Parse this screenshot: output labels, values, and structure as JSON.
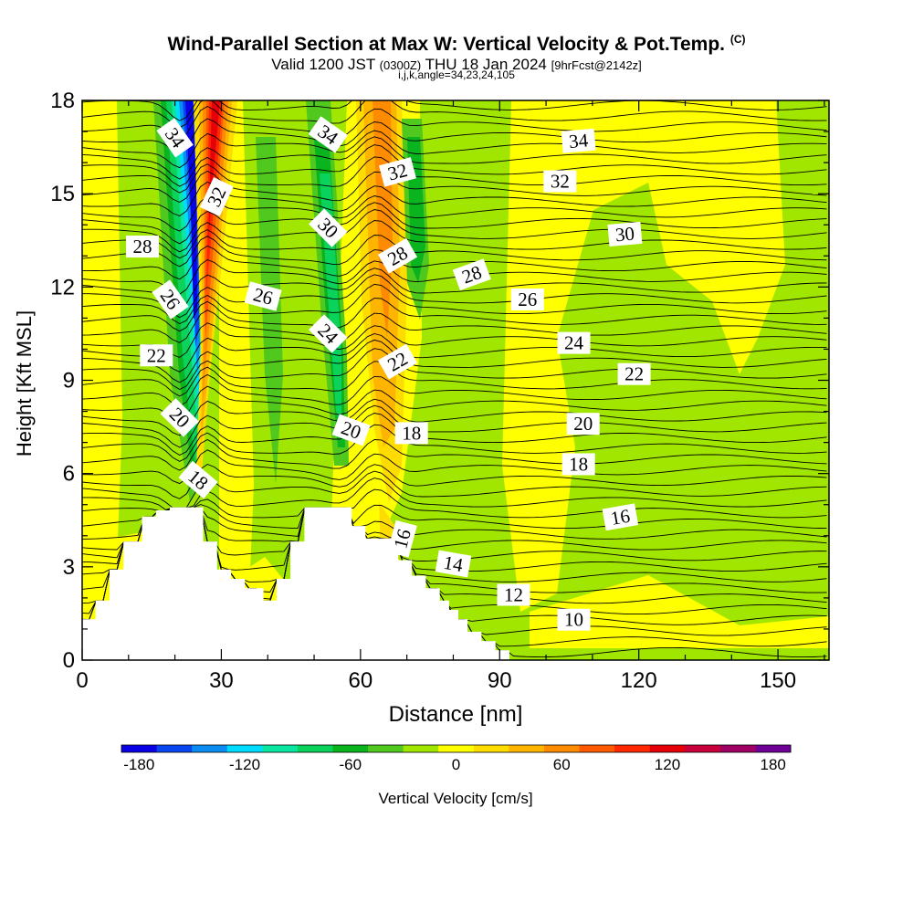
{
  "title": {
    "main": "Wind-Parallel Section at Max W: Vertical Velocity & Pot.Temp.",
    "copyright": "(C)",
    "valid_prefix": "Valid 1200 JST",
    "valid_zulu": "(0300Z)",
    "valid_date": "THU 18 Jan 2024",
    "forecast": "[9hrFcst@2142z]",
    "indices": "i,j,k,angle=34,23,24,105"
  },
  "chart_data": {
    "type": "heatmap",
    "xlabel": "Distance [nm]",
    "ylabel": "Height [Kft MSL]",
    "xlim": [
      0,
      161
    ],
    "ylim": [
      0,
      18
    ],
    "xticks": [
      0,
      30,
      60,
      90,
      120,
      150
    ],
    "yticks": [
      0,
      3,
      6,
      9,
      12,
      15,
      18
    ],
    "colorbar": {
      "label": "Vertical Velocity [cm/s]",
      "tick_labels": [
        -180,
        -120,
        -60,
        0,
        60,
        120,
        180
      ],
      "min": -190,
      "max": 190,
      "bins": 19,
      "colors": [
        "#0a00e6",
        "#0a46f0",
        "#0a8cf0",
        "#00dcff",
        "#0ae6a0",
        "#0ad25a",
        "#0ab41e",
        "#50c81e",
        "#a0e600",
        "#ffff00",
        "#ffdc00",
        "#ffb400",
        "#ff8c00",
        "#ff5a00",
        "#ff2800",
        "#e6000a",
        "#c8003c",
        "#a00064",
        "#6e0096"
      ]
    },
    "contour_variable": "Potential temperature",
    "contour_labels": [
      {
        "text": "34",
        "x": 20,
        "y": 16.8,
        "rot": 55
      },
      {
        "text": "32",
        "x": 29,
        "y": 14.9,
        "rot": -65
      },
      {
        "text": "28",
        "x": 13,
        "y": 13.3,
        "rot": 0
      },
      {
        "text": "26",
        "x": 19,
        "y": 11.6,
        "rot": 55
      },
      {
        "text": "22",
        "x": 16,
        "y": 9.8,
        "rot": 0
      },
      {
        "text": "20",
        "x": 21,
        "y": 7.8,
        "rot": 45
      },
      {
        "text": "18",
        "x": 25,
        "y": 5.8,
        "rot": 40
      },
      {
        "text": "26",
        "x": 39,
        "y": 11.7,
        "rot": 15
      },
      {
        "text": "34",
        "x": 53,
        "y": 16.9,
        "rot": 35
      },
      {
        "text": "30",
        "x": 53,
        "y": 13.9,
        "rot": 45
      },
      {
        "text": "24",
        "x": 53,
        "y": 10.5,
        "rot": 45
      },
      {
        "text": "20",
        "x": 58,
        "y": 7.4,
        "rot": 20
      },
      {
        "text": "32",
        "x": 68,
        "y": 15.7,
        "rot": -15
      },
      {
        "text": "28",
        "x": 68,
        "y": 13.0,
        "rot": -30
      },
      {
        "text": "22",
        "x": 68,
        "y": 9.6,
        "rot": -30
      },
      {
        "text": "18",
        "x": 71,
        "y": 7.3,
        "rot": 0
      },
      {
        "text": "16",
        "x": 69,
        "y": 3.9,
        "rot": -75
      },
      {
        "text": "28",
        "x": 84,
        "y": 12.4,
        "rot": -20
      },
      {
        "text": "14",
        "x": 80,
        "y": 3.1,
        "rot": 10
      },
      {
        "text": "26",
        "x": 96,
        "y": 11.6,
        "rot": 0
      },
      {
        "text": "12",
        "x": 93,
        "y": 2.1,
        "rot": 0
      },
      {
        "text": "34",
        "x": 107,
        "y": 16.7,
        "rot": -5
      },
      {
        "text": "32",
        "x": 103,
        "y": 15.4,
        "rot": 0
      },
      {
        "text": "24",
        "x": 106,
        "y": 10.2,
        "rot": 0
      },
      {
        "text": "20",
        "x": 108,
        "y": 7.6,
        "rot": 0
      },
      {
        "text": "18",
        "x": 107,
        "y": 6.3,
        "rot": 0
      },
      {
        "text": "10",
        "x": 106,
        "y": 1.3,
        "rot": 0
      },
      {
        "text": "30",
        "x": 117,
        "y": 13.7,
        "rot": -5
      },
      {
        "text": "16",
        "x": 116,
        "y": 4.6,
        "rot": -10
      },
      {
        "text": "22",
        "x": 119,
        "y": 9.2,
        "rot": 0
      }
    ],
    "terrain_kft": [
      [
        0,
        1.3
      ],
      [
        3,
        1.3
      ],
      [
        3,
        1.9
      ],
      [
        6,
        1.9
      ],
      [
        6,
        2.9
      ],
      [
        9,
        2.9
      ],
      [
        9,
        3.8
      ],
      [
        13,
        3.8
      ],
      [
        13,
        4.6
      ],
      [
        16,
        4.6
      ],
      [
        16,
        4.8
      ],
      [
        19,
        4.8
      ],
      [
        19,
        4.9
      ],
      [
        26,
        4.9
      ],
      [
        26,
        3.8
      ],
      [
        29,
        3.8
      ],
      [
        29,
        2.9
      ],
      [
        32,
        2.9
      ],
      [
        32,
        2.6
      ],
      [
        35,
        2.6
      ],
      [
        35,
        2.3
      ],
      [
        39,
        2.3
      ],
      [
        39,
        1.9
      ],
      [
        42,
        1.9
      ],
      [
        42,
        2.6
      ],
      [
        45,
        2.6
      ],
      [
        45,
        3.8
      ],
      [
        48,
        3.8
      ],
      [
        48,
        4.9
      ],
      [
        58,
        4.9
      ],
      [
        58,
        4.3
      ],
      [
        61,
        4.3
      ],
      [
        61,
        3.9
      ],
      [
        68,
        3.9
      ],
      [
        68,
        3.2
      ],
      [
        71,
        3.2
      ],
      [
        71,
        2.7
      ],
      [
        74,
        2.7
      ],
      [
        74,
        2.3
      ],
      [
        77,
        2.3
      ],
      [
        77,
        1.9
      ],
      [
        79,
        1.9
      ],
      [
        79,
        1.6
      ],
      [
        81,
        1.6
      ],
      [
        81,
        1.3
      ],
      [
        83,
        1.3
      ],
      [
        83,
        0.9
      ],
      [
        86,
        0.9
      ],
      [
        86,
        0.6
      ],
      [
        89,
        0.6
      ],
      [
        89,
        0.3
      ],
      [
        92,
        0.3
      ],
      [
        92,
        0
      ],
      [
        161,
        0
      ]
    ]
  }
}
